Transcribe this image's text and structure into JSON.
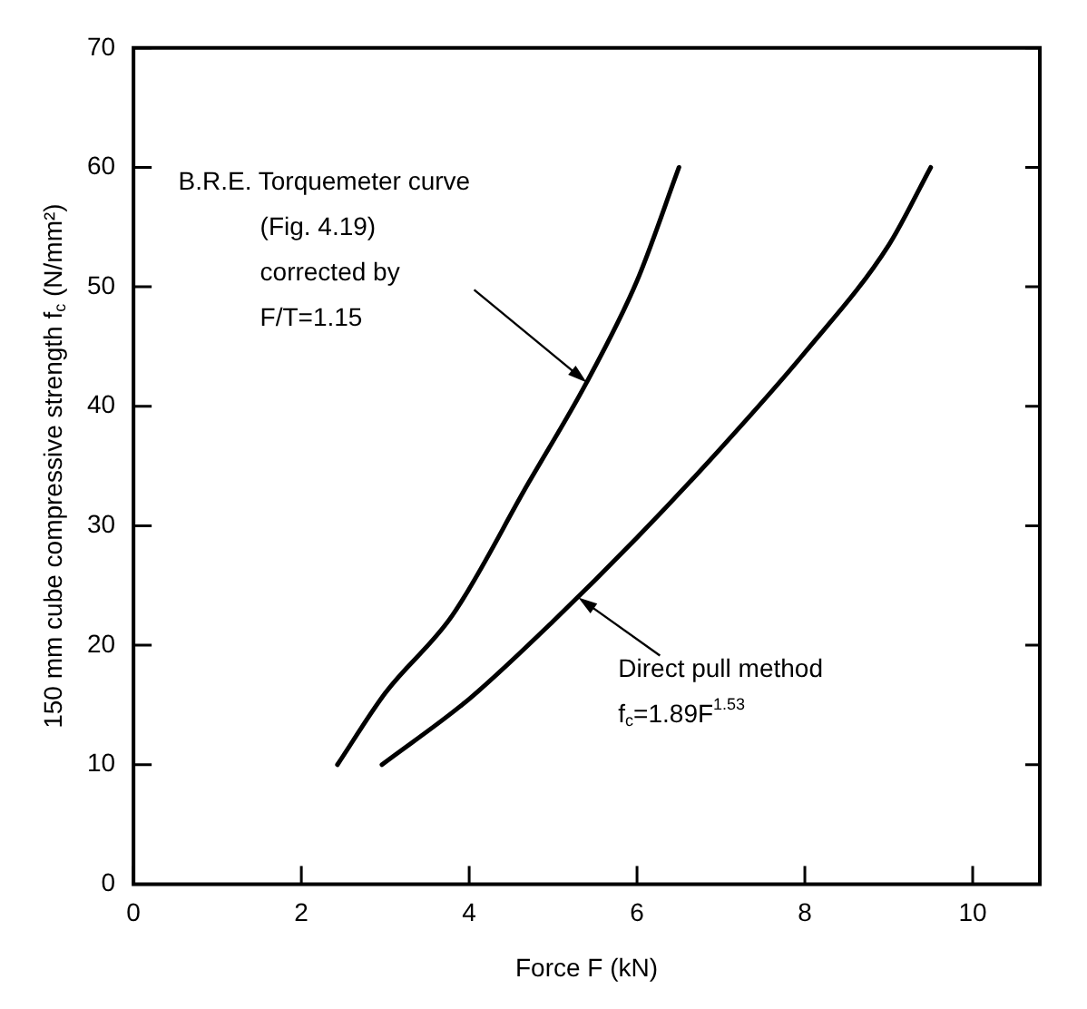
{
  "chart_data": {
    "type": "line",
    "xlabel": "Force F (kN)",
    "ylabel": "150 mm cube compressive strength f$_{c}$ (N/mm²)",
    "xlim": [
      0,
      10.8
    ],
    "ylim": [
      0,
      70
    ],
    "xticks": [
      0,
      2,
      4,
      6,
      8,
      10
    ],
    "yticks": [
      0,
      10,
      20,
      30,
      40,
      50,
      60,
      70
    ],
    "grid": false,
    "legend": false,
    "marker": "none",
    "line_style": "solid",
    "series": [
      {
        "color": "#000000",
        "x": [
          2.43,
          3,
          3.8,
          4.7,
          5.4,
          6,
          6.5
        ],
        "values": [
          10,
          16,
          22.5,
          33.5,
          42,
          50.5,
          60
        ]
      },
      {
        "color": "#000000",
        "x": [
          2.96,
          4,
          5,
          6,
          7,
          8,
          9,
          9.5
        ],
        "values": [
          10,
          15.5,
          22,
          29,
          36.5,
          44.5,
          53.5,
          60
        ]
      }
    ],
    "annotations": [
      {
        "text": "B.R.E. Torquemeter curve\n(Fig. 4.19)\ncorrected by\nF/T=1.15",
        "x": 5.4,
        "y": 42
      },
      {
        "text": "Direct pull method\nf$_{c}$=1.89F$^{1.53}$",
        "x": 5.3,
        "y": 24
      }
    ]
  }
}
